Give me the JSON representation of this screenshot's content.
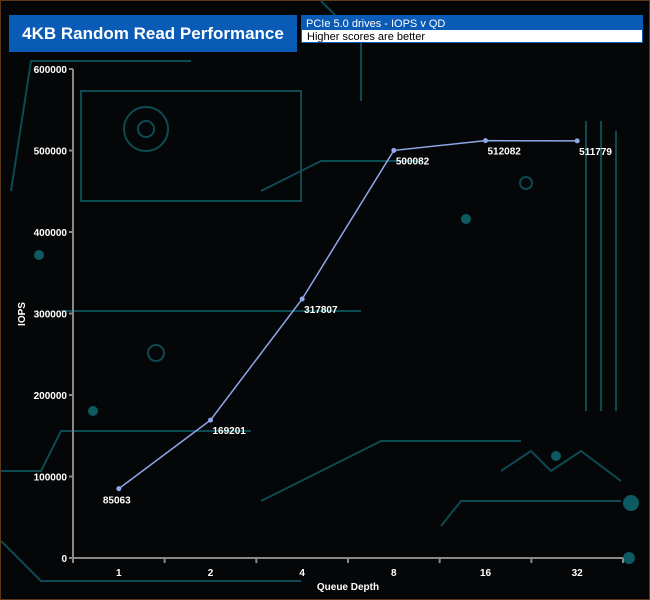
{
  "chart_data": {
    "type": "line",
    "title": "4KB Random Read Performance",
    "subtitle": "PCIe 5.0 drives - IOPS v QD",
    "note": "Higher scores are better",
    "xlabel": "Queue Depth",
    "ylabel": "IOPS",
    "categories": [
      "1",
      "2",
      "4",
      "8",
      "16",
      "32"
    ],
    "values": [
      85063,
      169201,
      317807,
      500082,
      512082,
      511779
    ],
    "ylim": [
      0,
      600000
    ],
    "yticks": [
      0,
      100000,
      200000,
      300000,
      400000,
      500000,
      600000
    ],
    "grid": false,
    "line_color": "#8fa8e8",
    "title_color": "#0a5bb5"
  }
}
